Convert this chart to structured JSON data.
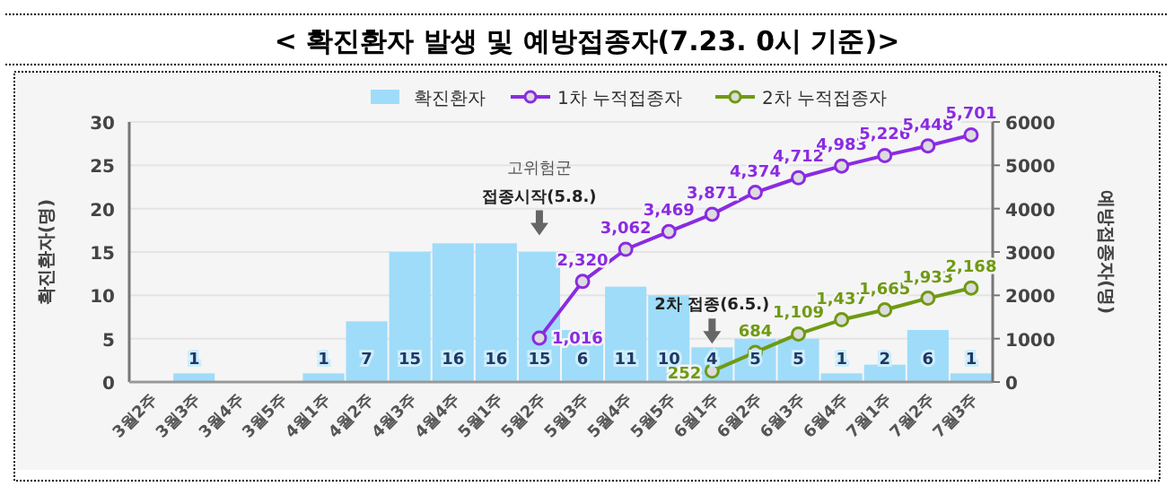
{
  "chart_data": {
    "type": "bar",
    "title": "< 확진환자 발생 및 예방접종자(7.23. 0시 기준)>",
    "ylabel": "확진환자(명)",
    "y2label": "예방접종자(명)",
    "categories": [
      "3월2주",
      "3월3주",
      "3월4주",
      "3월5주",
      "4월1주",
      "4월2주",
      "4월3주",
      "4월4주",
      "5월1주",
      "5월2주",
      "5월3주",
      "5월4주",
      "5월5주",
      "6월1주",
      "6월2주",
      "6월3주",
      "6월4주",
      "7월1주",
      "7월2주",
      "7월3주"
    ],
    "series": [
      {
        "name": "확진환자",
        "type": "bar",
        "color": "#9fdcfa",
        "values": [
          0,
          1,
          0,
          0,
          1,
          7,
          15,
          16,
          16,
          15,
          6,
          11,
          10,
          4,
          5,
          5,
          1,
          2,
          6,
          1
        ],
        "value_labels": [
          null,
          "1",
          null,
          null,
          "1",
          "7",
          "15",
          "16",
          "16",
          "15",
          "6",
          "11",
          "10",
          "4",
          "5",
          "5",
          "1",
          "2",
          "6",
          "1"
        ]
      },
      {
        "name": "1차 누적접종자",
        "type": "line",
        "axis": "y2",
        "color": "#8a2be2",
        "values": [
          null,
          null,
          null,
          null,
          null,
          null,
          null,
          null,
          null,
          1016,
          2320,
          3062,
          3469,
          3871,
          4374,
          4712,
          4983,
          5226,
          5448,
          5701
        ],
        "value_labels": [
          null,
          null,
          null,
          null,
          null,
          null,
          null,
          null,
          null,
          "1,016",
          "2,320",
          "3,062",
          "3,469",
          "3,871",
          "4,374",
          "4,712",
          "4,983",
          "5,226",
          "5,448",
          "5,701"
        ]
      },
      {
        "name": "2차 누적접종자",
        "type": "line",
        "axis": "y2",
        "color": "#6f9a12",
        "values": [
          null,
          null,
          null,
          null,
          null,
          null,
          null,
          null,
          null,
          null,
          null,
          null,
          null,
          252,
          684,
          1109,
          1437,
          1665,
          1933,
          2168
        ],
        "value_labels": [
          null,
          null,
          null,
          null,
          null,
          null,
          null,
          null,
          null,
          null,
          null,
          null,
          null,
          "252",
          "684",
          "1,109",
          "1,437",
          "1,665",
          "1,933",
          "2,168"
        ]
      }
    ],
    "ylim": [
      0,
      30
    ],
    "yticks": [
      0,
      5,
      10,
      15,
      20,
      25,
      30
    ],
    "y2lim": [
      0,
      6000
    ],
    "y2ticks": [
      0,
      1000,
      2000,
      3000,
      4000,
      5000,
      6000
    ],
    "grid": "y",
    "legend": "top",
    "marker": "circle",
    "annotations": [
      {
        "text": "고위험군\n접종시작(5.8.)",
        "x": "5월2주",
        "y": 16.5
      },
      {
        "text": "2차 접종(6.5.)",
        "x": "6월1주",
        "y": 4
      }
    ]
  }
}
